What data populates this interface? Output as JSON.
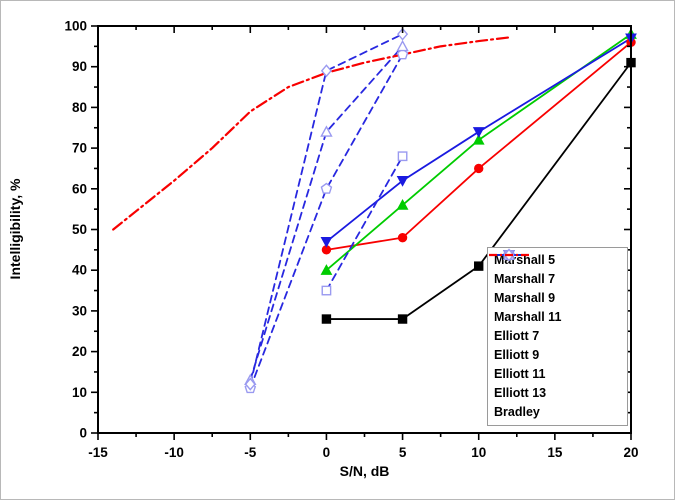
{
  "figure": {
    "background": "#ffffff",
    "border_color": "#b8b8b8"
  },
  "chart_data": {
    "type": "line",
    "title": "",
    "xlabel": "S/N, dB",
    "ylabel": "Intelligibility, %",
    "xlim": [
      -15,
      20
    ],
    "ylim": [
      0,
      100
    ],
    "x_ticks": [
      -15,
      -10,
      -5,
      0,
      5,
      10,
      15,
      20
    ],
    "y_ticks": [
      0,
      10,
      20,
      30,
      40,
      50,
      60,
      70,
      80,
      90,
      100
    ],
    "x_minor_ticks": [
      -12.5,
      -7.5,
      -2.5,
      2.5,
      7.5,
      12.5,
      17.5
    ],
    "y_minor_ticks": [
      5,
      15,
      25,
      35,
      45,
      55,
      65,
      75,
      85,
      95
    ],
    "grid": false,
    "legend_position": "lower right",
    "axis_color": "#000000",
    "series": [
      {
        "name": "Marshall 5",
        "color": "#000000",
        "marker_color": "#000000",
        "line": "solid",
        "marker": "square-filled",
        "points": [
          [
            0,
            28
          ],
          [
            5,
            28
          ],
          [
            10,
            41
          ],
          [
            20,
            91
          ]
        ]
      },
      {
        "name": "Marshall 7",
        "color": "#f80000",
        "marker_color": "#f80000",
        "line": "solid",
        "marker": "circle-filled",
        "points": [
          [
            0,
            45
          ],
          [
            5,
            48
          ],
          [
            10,
            65
          ],
          [
            20,
            96
          ]
        ]
      },
      {
        "name": "Marshall 9",
        "color": "#00cc00",
        "marker_color": "#00cc00",
        "line": "solid",
        "marker": "triangle-up-filled",
        "points": [
          [
            0,
            40
          ],
          [
            5,
            56
          ],
          [
            10,
            72
          ],
          [
            20,
            98
          ]
        ]
      },
      {
        "name": "Marshall 11",
        "color": "#1a1ae0",
        "marker_color": "#1a1ae0",
        "line": "solid",
        "marker": "triangle-down-filled",
        "points": [
          [
            0,
            47
          ],
          [
            5,
            62
          ],
          [
            10,
            74
          ],
          [
            20,
            97
          ]
        ]
      },
      {
        "name": "Elliott 7",
        "color": "#2828e0",
        "marker_color": "#9a9af0",
        "line": "dashed",
        "marker": "square-open",
        "points": [
          [
            0,
            35
          ],
          [
            5,
            68
          ]
        ]
      },
      {
        "name": "Elliott 9",
        "color": "#2828e0",
        "marker_color": "#9a9af0",
        "line": "dashed",
        "marker": "pentagon-open",
        "points": [
          [
            -5,
            11
          ],
          [
            0,
            60
          ],
          [
            5,
            93
          ]
        ]
      },
      {
        "name": "Elliott 11",
        "color": "#2828e0",
        "marker_color": "#9a9af0",
        "line": "dashed",
        "marker": "triangle-up-open",
        "points": [
          [
            -5,
            13
          ],
          [
            0,
            74
          ],
          [
            5,
            95
          ]
        ]
      },
      {
        "name": "Elliott 13",
        "color": "#2828e0",
        "marker_color": "#9a9af0",
        "line": "dashed",
        "marker": "diamond-open",
        "points": [
          [
            -5,
            12
          ],
          [
            0,
            89
          ],
          [
            5,
            98
          ]
        ]
      },
      {
        "name": "Bradley",
        "color": "#f80000",
        "marker_color": "#f80000",
        "line": "dashdot",
        "marker": "none",
        "points": [
          [
            -14,
            50
          ],
          [
            -12.5,
            54.5
          ],
          [
            -10,
            62
          ],
          [
            -7.5,
            70
          ],
          [
            -5,
            79
          ],
          [
            -2.5,
            85
          ],
          [
            0,
            88.5
          ],
          [
            2.5,
            91
          ],
          [
            5,
            93
          ],
          [
            7.5,
            95
          ],
          [
            10,
            96.3
          ],
          [
            12,
            97.2
          ]
        ]
      }
    ]
  }
}
